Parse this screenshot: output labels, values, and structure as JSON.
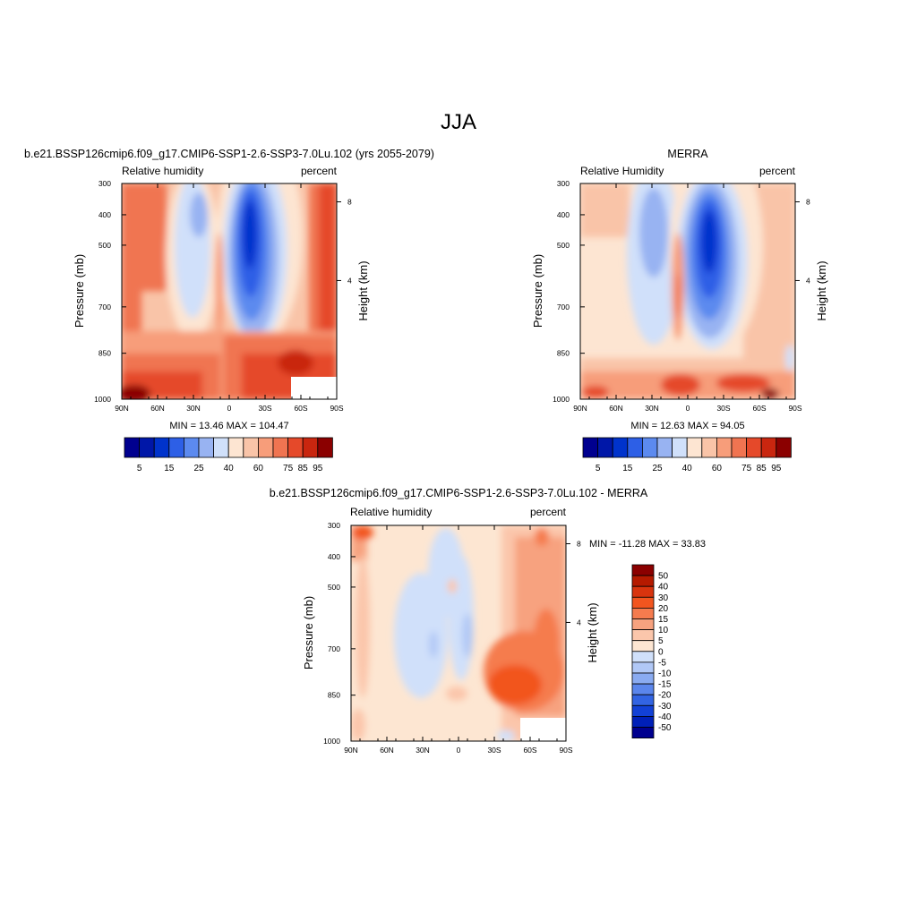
{
  "page": {
    "title": "JJA"
  },
  "colors": {
    "cb_abs": [
      "#00008f",
      "#0017a8",
      "#0033cc",
      "#2d5fe6",
      "#5c8aef",
      "#98b3f2",
      "#d0e0fa",
      "#fde5d2",
      "#f9c4a8",
      "#f79d7a",
      "#f07451",
      "#e5492a",
      "#c9260f",
      "#8b0000"
    ],
    "cb_diff": [
      "#8b0000",
      "#b51a00",
      "#d8340e",
      "#f2551f",
      "#f57b4e",
      "#f7a27f",
      "#fbc6ab",
      "#fde6d2",
      "#d0e0fa",
      "#b1c8f6",
      "#8aabf1",
      "#5b86ec",
      "#3264e3",
      "#1241d6",
      "#0020b8",
      "#00008f"
    ]
  },
  "chart_data": [
    {
      "type": "heatmap",
      "title": "b.e21.BSSP126cmip6.f09_g17.CMIP6-SSP1-2.6-SSP3-7.0Lu.102 (yrs 2055-2079)",
      "left_label": "Relative humidity",
      "right_label": "percent",
      "ylabel": "Pressure (mb)",
      "y2label": "Height (km)",
      "x_ticks": [
        "90N",
        "60N",
        "30N",
        "0",
        "30S",
        "60S",
        "90S"
      ],
      "y_ticks": [
        "300",
        "400",
        "500",
        "700",
        "850",
        "1000"
      ],
      "y2_ticks": [
        "8",
        "4"
      ],
      "stats": "MIN = 13.46 MAX = 104.47",
      "colorbar_labels": [
        "5",
        "15",
        "25",
        "40",
        "60",
        "75",
        "85",
        "95"
      ]
    },
    {
      "type": "heatmap",
      "title": "MERRA",
      "left_label": "Relative Humidity",
      "right_label": "percent",
      "ylabel": "Pressure (mb)",
      "y2label": "Height (km)",
      "x_ticks": [
        "90N",
        "60N",
        "30N",
        "0",
        "30S",
        "60S",
        "90S"
      ],
      "y_ticks": [
        "300",
        "400",
        "500",
        "700",
        "850",
        "1000"
      ],
      "y2_ticks": [
        "8",
        "4"
      ],
      "stats": "MIN = 12.63 MAX = 94.05",
      "colorbar_labels": [
        "5",
        "15",
        "25",
        "40",
        "60",
        "75",
        "85",
        "95"
      ]
    },
    {
      "type": "heatmap",
      "title": "b.e21.BSSP126cmip6.f09_g17.CMIP6-SSP1-2.6-SSP3-7.0Lu.102 - MERRA",
      "left_label": "Relative humidity",
      "right_label": "percent",
      "ylabel": "Pressure (mb)",
      "y2label": "Height (km)",
      "x_ticks": [
        "90N",
        "60N",
        "30N",
        "0",
        "30S",
        "60S",
        "90S"
      ],
      "y_ticks": [
        "300",
        "400",
        "500",
        "700",
        "850",
        "1000"
      ],
      "y2_ticks": [
        "8",
        "4"
      ],
      "stats": "MIN = -11.28 MAX = 33.83",
      "colorbar_labels": [
        "50",
        "40",
        "30",
        "20",
        "15",
        "10",
        "5",
        "0",
        "-5",
        "-10",
        "-15",
        "-20",
        "-30",
        "-40",
        "-50"
      ]
    }
  ]
}
